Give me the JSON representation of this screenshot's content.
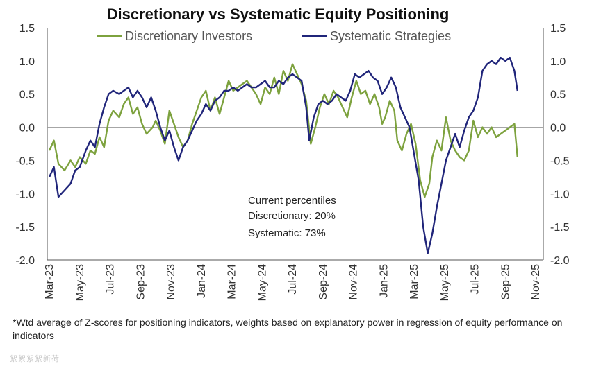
{
  "chart_data": {
    "type": "line",
    "title": "Discretionary  vs Systematic Equity Positioning",
    "ylim": [
      -2.0,
      1.5
    ],
    "yticks": [
      "1.5",
      "1.0",
      "0.5",
      "0.0",
      "-0.5",
      "-1.0",
      "-1.5",
      "-2.0"
    ],
    "xticks": [
      "Mar-23",
      "May-23",
      "Jul-23",
      "Sep-23",
      "Nov-23",
      "Jan-24",
      "Mar-24",
      "May-24",
      "Jul-24",
      "Sep-24",
      "Nov-24",
      "Jan-25",
      "Mar-25",
      "May-25",
      "Jul-25",
      "Sep-25",
      "Nov-25"
    ],
    "x_month_range": [
      0,
      32
    ],
    "series": [
      {
        "name": "Discretionary Investors",
        "color": "#7da23e",
        "points": [
          [
            0,
            -0.35
          ],
          [
            0.3,
            -0.2
          ],
          [
            0.6,
            -0.55
          ],
          [
            1.0,
            -0.65
          ],
          [
            1.4,
            -0.5
          ],
          [
            1.7,
            -0.6
          ],
          [
            2.0,
            -0.45
          ],
          [
            2.4,
            -0.55
          ],
          [
            2.7,
            -0.35
          ],
          [
            3.0,
            -0.4
          ],
          [
            3.3,
            -0.15
          ],
          [
            3.6,
            -0.3
          ],
          [
            3.9,
            0.1
          ],
          [
            4.2,
            0.25
          ],
          [
            4.6,
            0.15
          ],
          [
            4.9,
            0.35
          ],
          [
            5.2,
            0.45
          ],
          [
            5.5,
            0.2
          ],
          [
            5.8,
            0.3
          ],
          [
            6.1,
            0.05
          ],
          [
            6.4,
            -0.1
          ],
          [
            6.8,
            0.0
          ],
          [
            7.0,
            0.1
          ],
          [
            7.3,
            -0.05
          ],
          [
            7.6,
            -0.25
          ],
          [
            7.9,
            0.25
          ],
          [
            8.2,
            0.05
          ],
          [
            8.5,
            -0.15
          ],
          [
            8.8,
            -0.3
          ],
          [
            9.1,
            -0.2
          ],
          [
            9.4,
            0.05
          ],
          [
            9.7,
            0.25
          ],
          [
            10.0,
            0.45
          ],
          [
            10.3,
            0.55
          ],
          [
            10.6,
            0.25
          ],
          [
            10.9,
            0.45
          ],
          [
            11.2,
            0.2
          ],
          [
            11.5,
            0.45
          ],
          [
            11.8,
            0.7
          ],
          [
            12.1,
            0.55
          ],
          [
            12.4,
            0.6
          ],
          [
            12.7,
            0.65
          ],
          [
            13.0,
            0.7
          ],
          [
            13.3,
            0.6
          ],
          [
            13.6,
            0.5
          ],
          [
            13.9,
            0.35
          ],
          [
            14.2,
            0.6
          ],
          [
            14.5,
            0.5
          ],
          [
            14.8,
            0.75
          ],
          [
            15.1,
            0.5
          ],
          [
            15.4,
            0.85
          ],
          [
            15.7,
            0.7
          ],
          [
            16.0,
            0.95
          ],
          [
            16.3,
            0.8
          ],
          [
            16.6,
            0.65
          ],
          [
            16.9,
            0.4
          ],
          [
            17.2,
            -0.25
          ],
          [
            17.5,
            0.0
          ],
          [
            17.8,
            0.3
          ],
          [
            18.1,
            0.5
          ],
          [
            18.4,
            0.35
          ],
          [
            18.7,
            0.55
          ],
          [
            19.0,
            0.45
          ],
          [
            19.3,
            0.3
          ],
          [
            19.6,
            0.15
          ],
          [
            19.9,
            0.45
          ],
          [
            20.2,
            0.7
          ],
          [
            20.5,
            0.5
          ],
          [
            20.8,
            0.55
          ],
          [
            21.1,
            0.35
          ],
          [
            21.4,
            0.5
          ],
          [
            21.7,
            0.3
          ],
          [
            21.9,
            0.05
          ],
          [
            22.1,
            0.15
          ],
          [
            22.4,
            0.4
          ],
          [
            22.7,
            0.25
          ],
          [
            22.9,
            -0.2
          ],
          [
            23.2,
            -0.35
          ],
          [
            23.5,
            -0.1
          ],
          [
            23.8,
            0.05
          ],
          [
            24.1,
            -0.25
          ],
          [
            24.4,
            -0.8
          ],
          [
            24.7,
            -1.05
          ],
          [
            25.0,
            -0.85
          ],
          [
            25.2,
            -0.45
          ],
          [
            25.5,
            -0.2
          ],
          [
            25.8,
            -0.35
          ],
          [
            26.1,
            0.15
          ],
          [
            26.4,
            -0.2
          ],
          [
            26.7,
            -0.35
          ],
          [
            27.0,
            -0.45
          ],
          [
            27.3,
            -0.5
          ],
          [
            27.6,
            -0.35
          ],
          [
            27.9,
            0.1
          ],
          [
            28.2,
            -0.15
          ],
          [
            28.5,
            0.0
          ],
          [
            28.8,
            -0.1
          ],
          [
            29.1,
            0.0
          ],
          [
            29.4,
            -0.15
          ],
          [
            29.7,
            -0.1
          ],
          [
            30.0,
            -0.05
          ],
          [
            30.3,
            0.0
          ],
          [
            30.6,
            0.05
          ],
          [
            30.8,
            -0.45
          ]
        ]
      },
      {
        "name": "Systematic Strategies",
        "color": "#20257a",
        "points": [
          [
            0,
            -0.75
          ],
          [
            0.3,
            -0.6
          ],
          [
            0.6,
            -1.05
          ],
          [
            1.0,
            -0.95
          ],
          [
            1.4,
            -0.85
          ],
          [
            1.7,
            -0.65
          ],
          [
            2.0,
            -0.6
          ],
          [
            2.4,
            -0.35
          ],
          [
            2.7,
            -0.2
          ],
          [
            3.0,
            -0.3
          ],
          [
            3.3,
            0.05
          ],
          [
            3.6,
            0.3
          ],
          [
            3.9,
            0.5
          ],
          [
            4.2,
            0.55
          ],
          [
            4.6,
            0.5
          ],
          [
            4.9,
            0.55
          ],
          [
            5.2,
            0.6
          ],
          [
            5.5,
            0.45
          ],
          [
            5.8,
            0.55
          ],
          [
            6.1,
            0.45
          ],
          [
            6.4,
            0.3
          ],
          [
            6.7,
            0.45
          ],
          [
            7.0,
            0.25
          ],
          [
            7.3,
            0.0
          ],
          [
            7.6,
            -0.2
          ],
          [
            7.9,
            -0.05
          ],
          [
            8.2,
            -0.3
          ],
          [
            8.5,
            -0.5
          ],
          [
            8.8,
            -0.3
          ],
          [
            9.1,
            -0.2
          ],
          [
            9.4,
            -0.05
          ],
          [
            9.7,
            0.1
          ],
          [
            10.0,
            0.2
          ],
          [
            10.3,
            0.35
          ],
          [
            10.6,
            0.25
          ],
          [
            10.9,
            0.4
          ],
          [
            11.2,
            0.45
          ],
          [
            11.5,
            0.55
          ],
          [
            11.8,
            0.55
          ],
          [
            12.1,
            0.6
          ],
          [
            12.4,
            0.55
          ],
          [
            12.7,
            0.6
          ],
          [
            13.0,
            0.65
          ],
          [
            13.3,
            0.6
          ],
          [
            13.6,
            0.6
          ],
          [
            13.9,
            0.65
          ],
          [
            14.2,
            0.7
          ],
          [
            14.5,
            0.6
          ],
          [
            14.8,
            0.6
          ],
          [
            15.1,
            0.7
          ],
          [
            15.4,
            0.65
          ],
          [
            15.7,
            0.75
          ],
          [
            16.0,
            0.8
          ],
          [
            16.3,
            0.75
          ],
          [
            16.6,
            0.7
          ],
          [
            16.9,
            0.3
          ],
          [
            17.1,
            -0.2
          ],
          [
            17.4,
            0.15
          ],
          [
            17.7,
            0.35
          ],
          [
            18.0,
            0.4
          ],
          [
            18.3,
            0.35
          ],
          [
            18.6,
            0.4
          ],
          [
            18.9,
            0.5
          ],
          [
            19.2,
            0.45
          ],
          [
            19.5,
            0.4
          ],
          [
            19.8,
            0.55
          ],
          [
            20.1,
            0.8
          ],
          [
            20.4,
            0.75
          ],
          [
            20.7,
            0.8
          ],
          [
            21.0,
            0.85
          ],
          [
            21.3,
            0.75
          ],
          [
            21.6,
            0.7
          ],
          [
            21.9,
            0.5
          ],
          [
            22.2,
            0.6
          ],
          [
            22.5,
            0.75
          ],
          [
            22.8,
            0.6
          ],
          [
            23.1,
            0.3
          ],
          [
            23.4,
            0.15
          ],
          [
            23.7,
            0.0
          ],
          [
            24.0,
            -0.4
          ],
          [
            24.3,
            -0.8
          ],
          [
            24.6,
            -1.5
          ],
          [
            24.9,
            -1.9
          ],
          [
            25.2,
            -1.6
          ],
          [
            25.5,
            -1.2
          ],
          [
            25.8,
            -0.85
          ],
          [
            26.1,
            -0.5
          ],
          [
            26.4,
            -0.3
          ],
          [
            26.7,
            -0.1
          ],
          [
            27.0,
            -0.3
          ],
          [
            27.3,
            -0.05
          ],
          [
            27.6,
            0.15
          ],
          [
            27.9,
            0.25
          ],
          [
            28.2,
            0.45
          ],
          [
            28.5,
            0.85
          ],
          [
            28.8,
            0.95
          ],
          [
            29.1,
            1.0
          ],
          [
            29.4,
            0.95
          ],
          [
            29.7,
            1.05
          ],
          [
            30.0,
            1.0
          ],
          [
            30.3,
            1.05
          ],
          [
            30.6,
            0.85
          ],
          [
            30.8,
            0.55
          ]
        ]
      }
    ],
    "annotation": {
      "heading": "Current percentiles",
      "line1": "Discretionary: 20%",
      "line2": "Systematic: 73%"
    }
  },
  "footnote": "*Wtd average of Z-scores for positioning indicators, weights based on explanatory power in regression of equity performance on indicators",
  "watermark": "絮絮絮絮新荷"
}
